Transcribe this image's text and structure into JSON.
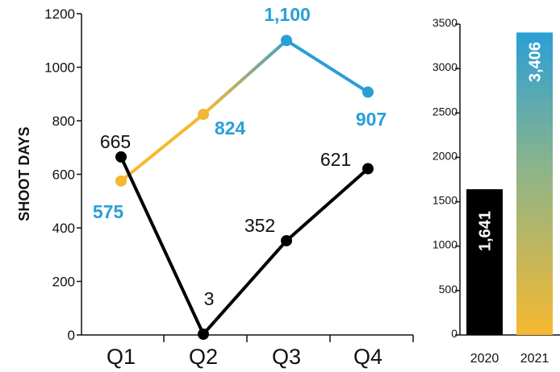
{
  "chart_data": [
    {
      "type": "line",
      "ylabel": "SHOOT DAYS",
      "categories": [
        "Q1",
        "Q2",
        "Q3",
        "Q4"
      ],
      "ylim": [
        0,
        1200
      ],
      "yticks": [
        "0",
        "200",
        "400",
        "600",
        "800",
        "1000",
        "1200"
      ],
      "series": [
        {
          "values": [
            665,
            3,
            352,
            621
          ],
          "labels": [
            "665",
            "3",
            "352",
            "621"
          ],
          "color": "#000000"
        },
        {
          "values": [
            575,
            824,
            1100,
            907
          ],
          "labels": [
            "575",
            "824",
            "1,100",
            "907"
          ],
          "color_start": "#f6b830",
          "color_end": "#2a9fd6",
          "label_color": "#2a9fd6"
        }
      ]
    },
    {
      "type": "bar",
      "categories": [
        "2020",
        "2021"
      ],
      "values": [
        1641,
        3406
      ],
      "labels": [
        "1,641",
        "3,406"
      ],
      "ylim": [
        0,
        3500
      ],
      "yticks": [
        "0",
        "500",
        "1000",
        "1500",
        "2000",
        "2500",
        "3000",
        "3500"
      ],
      "colors": [
        "#000000",
        "gradient #f6b830 to #2a9fd6"
      ]
    }
  ]
}
